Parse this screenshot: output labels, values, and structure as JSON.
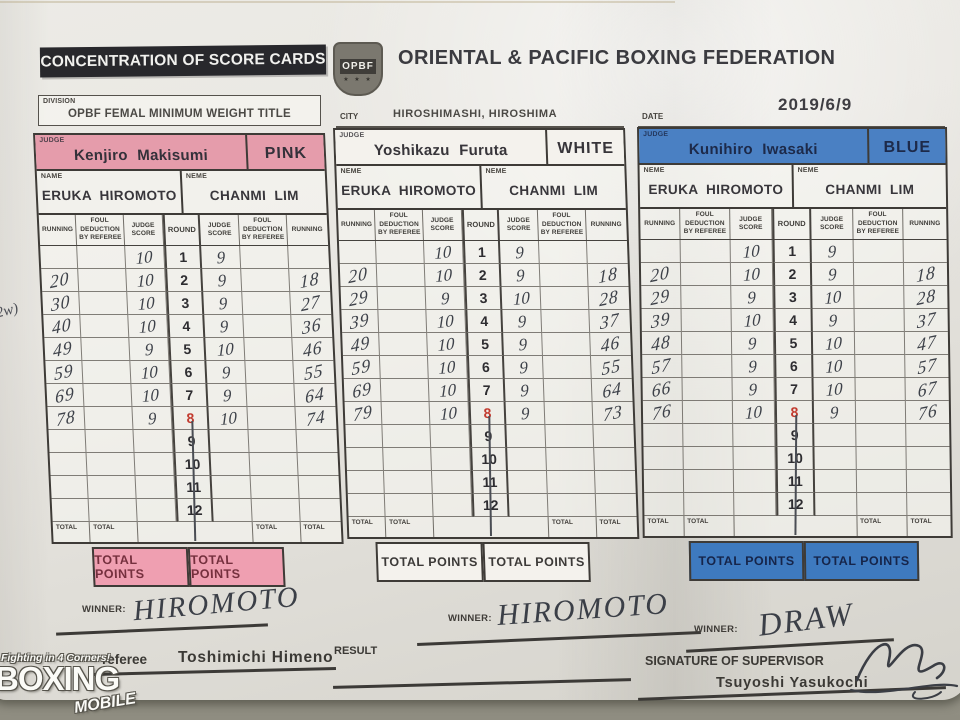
{
  "page": {
    "concentration_title": "CONCENTRATION OF SCORE CARDS",
    "federation_title": "ORIENTAL & PACIFIC BOXING FEDERATION",
    "logo_text": "OPBF",
    "division_label": "DIVISION",
    "division_value": "OPBF FEMAL MINIMUM WEIGHT TITLE",
    "city_label": "CITY",
    "city_value": "HIROSHIMASHI, HIROSHIMA",
    "date_label": "DATE",
    "date_value": "2019/6/9"
  },
  "table_headers": [
    "RUNNING",
    "FOUL DEDUCTION BY REFEREE",
    "JUDGE SCORE",
    "ROUND",
    "JUDGE SCORE",
    "FOUL DEDUCTION BY REFEREE",
    "RUNNING"
  ],
  "total_label": "TOTAL",
  "total_points_label": "TOTAL POINTS",
  "colors": {
    "pink_accent": "#e59cab",
    "pink_total_points": "#ef9fb1",
    "white_accent": "#f4f2ed",
    "blue_accent": "#4a80c3",
    "blue_total_points": "#3e7abf",
    "round8_red": "#c23a2e",
    "ink": "#3d4149"
  },
  "cards": [
    {
      "judge_label": "JUDGE",
      "judge": "Kenjiro  Makisumi",
      "color": "PINK",
      "accent": "#e59cab",
      "tp_bg": "#ef9fb1",
      "head_text": "#34313a",
      "tp_text": "#75303e",
      "left_name_label": "NAME",
      "right_name_label": "NEME",
      "left_boxer": "ERUKA HIROMOTO",
      "right_boxer": "CHANMI  LIM",
      "winner_label": "WINNER:",
      "winner": "HIROMOTO",
      "rounds": [
        {
          "round": 1,
          "left_running": "",
          "left_foul": "",
          "left_score": "10",
          "right_score": "9",
          "right_foul": "",
          "right_running": ""
        },
        {
          "round": 2,
          "left_running": "20",
          "left_foul": "",
          "left_score": "10",
          "right_score": "9",
          "right_foul": "",
          "right_running": "18"
        },
        {
          "round": 3,
          "left_running": "30",
          "left_foul": "",
          "left_score": "10",
          "right_score": "9",
          "right_foul": "",
          "right_running": "27"
        },
        {
          "round": 4,
          "left_running": "40",
          "left_foul": "",
          "left_score": "10",
          "right_score": "9",
          "right_foul": "",
          "right_running": "36"
        },
        {
          "round": 5,
          "left_running": "49",
          "left_foul": "",
          "left_score": "9",
          "right_score": "10",
          "right_foul": "",
          "right_running": "46"
        },
        {
          "round": 6,
          "left_running": "59",
          "left_foul": "",
          "left_score": "10",
          "right_score": "9",
          "right_foul": "",
          "right_running": "55"
        },
        {
          "round": 7,
          "left_running": "69",
          "left_foul": "",
          "left_score": "10",
          "right_score": "9",
          "right_foul": "",
          "right_running": "64"
        },
        {
          "round": 8,
          "left_running": "78",
          "left_foul": "",
          "left_score": "9",
          "right_score": "10",
          "right_foul": "",
          "right_running": "74"
        },
        {
          "round": 9,
          "left_running": "",
          "left_foul": "",
          "left_score": "",
          "right_score": "",
          "right_foul": "",
          "right_running": ""
        },
        {
          "round": 10,
          "left_running": "",
          "left_foul": "",
          "left_score": "",
          "right_score": "",
          "right_foul": "",
          "right_running": ""
        },
        {
          "round": 11,
          "left_running": "",
          "left_foul": "",
          "left_score": "",
          "right_score": "",
          "right_foul": "",
          "right_running": ""
        },
        {
          "round": 12,
          "left_running": "",
          "left_foul": "",
          "left_score": "",
          "right_score": "",
          "right_foul": "",
          "right_running": ""
        }
      ]
    },
    {
      "judge_label": "JUDGE",
      "judge": "Yoshikazu  Furuta",
      "color": "WHITE",
      "accent": "#f4f2ed",
      "tp_bg": "#f4f2ed",
      "head_text": "#37353a",
      "tp_text": "#3c3a38",
      "left_name_label": "NEME",
      "right_name_label": "NEME",
      "left_boxer": "ERUKA HIROMOTO",
      "right_boxer": "CHANMI  LIM",
      "winner_label": "WINNER:",
      "winner": "HIROMOTO",
      "rounds": [
        {
          "round": 1,
          "left_running": "",
          "left_foul": "",
          "left_score": "10",
          "right_score": "9",
          "right_foul": "",
          "right_running": ""
        },
        {
          "round": 2,
          "left_running": "20",
          "left_foul": "",
          "left_score": "10",
          "right_score": "9",
          "right_foul": "",
          "right_running": "18"
        },
        {
          "round": 3,
          "left_running": "29",
          "left_foul": "",
          "left_score": "9",
          "right_score": "10",
          "right_foul": "",
          "right_running": "28"
        },
        {
          "round": 4,
          "left_running": "39",
          "left_foul": "",
          "left_score": "10",
          "right_score": "9",
          "right_foul": "",
          "right_running": "37"
        },
        {
          "round": 5,
          "left_running": "49",
          "left_foul": "",
          "left_score": "10",
          "right_score": "9",
          "right_foul": "",
          "right_running": "46"
        },
        {
          "round": 6,
          "left_running": "59",
          "left_foul": "",
          "left_score": "10",
          "right_score": "9",
          "right_foul": "",
          "right_running": "55"
        },
        {
          "round": 7,
          "left_running": "69",
          "left_foul": "",
          "left_score": "10",
          "right_score": "9",
          "right_foul": "",
          "right_running": "64"
        },
        {
          "round": 8,
          "left_running": "79",
          "left_foul": "",
          "left_score": "10",
          "right_score": "9",
          "right_foul": "",
          "right_running": "73"
        },
        {
          "round": 9,
          "left_running": "",
          "left_foul": "",
          "left_score": "",
          "right_score": "",
          "right_foul": "",
          "right_running": ""
        },
        {
          "round": 10,
          "left_running": "",
          "left_foul": "",
          "left_score": "",
          "right_score": "",
          "right_foul": "",
          "right_running": ""
        },
        {
          "round": 11,
          "left_running": "",
          "left_foul": "",
          "left_score": "",
          "right_score": "",
          "right_foul": "",
          "right_running": ""
        },
        {
          "round": 12,
          "left_running": "",
          "left_foul": "",
          "left_score": "",
          "right_score": "",
          "right_foul": "",
          "right_running": ""
        }
      ]
    },
    {
      "judge_label": "JUDGE",
      "judge": "Kunihiro  Iwasaki",
      "color": "BLUE",
      "accent": "#4a80c3",
      "tp_bg": "#3e7abf",
      "head_text": "#1d2a4a",
      "tp_text": "#16254a",
      "left_name_label": "NEME",
      "right_name_label": "NEME",
      "left_boxer": "ERUKA HIROMOTO",
      "right_boxer": "CHANMI  LIM",
      "winner_label": "WINNER:",
      "winner": "DRAW",
      "rounds": [
        {
          "round": 1,
          "left_running": "",
          "left_foul": "",
          "left_score": "10",
          "right_score": "9",
          "right_foul": "",
          "right_running": ""
        },
        {
          "round": 2,
          "left_running": "20",
          "left_foul": "",
          "left_score": "10",
          "right_score": "9",
          "right_foul": "",
          "right_running": "18"
        },
        {
          "round": 3,
          "left_running": "29",
          "left_foul": "",
          "left_score": "9",
          "right_score": "10",
          "right_foul": "",
          "right_running": "28"
        },
        {
          "round": 4,
          "left_running": "39",
          "left_foul": "",
          "left_score": "10",
          "right_score": "9",
          "right_foul": "",
          "right_running": "37"
        },
        {
          "round": 5,
          "left_running": "48",
          "left_foul": "",
          "left_score": "9",
          "right_score": "10",
          "right_foul": "",
          "right_running": "47"
        },
        {
          "round": 6,
          "left_running": "57",
          "left_foul": "",
          "left_score": "9",
          "right_score": "10",
          "right_foul": "",
          "right_running": "57"
        },
        {
          "round": 7,
          "left_running": "66",
          "left_foul": "",
          "left_score": "9",
          "right_score": "10",
          "right_foul": "",
          "right_running": "67"
        },
        {
          "round": 8,
          "left_running": "76",
          "left_foul": "",
          "left_score": "10",
          "right_score": "9",
          "right_foul": "",
          "right_running": "76"
        },
        {
          "round": 9,
          "left_running": "",
          "left_foul": "",
          "left_score": "",
          "right_score": "",
          "right_foul": "",
          "right_running": ""
        },
        {
          "round": 10,
          "left_running": "",
          "left_foul": "",
          "left_score": "",
          "right_score": "",
          "right_foul": "",
          "right_running": ""
        },
        {
          "round": 11,
          "left_running": "",
          "left_foul": "",
          "left_score": "",
          "right_score": "",
          "right_foul": "",
          "right_running": ""
        },
        {
          "round": 12,
          "left_running": "",
          "left_foul": "",
          "left_score": "",
          "right_score": "",
          "right_foul": "",
          "right_running": ""
        }
      ]
    }
  ],
  "footer": {
    "referee_label": "referee",
    "referee_name": "Toshimichi  Himeno",
    "result_label": "RESULT",
    "supervisor_label": "SIGNATURE OF SUPERVISOR",
    "supervisor_name": "Tsuyoshi  Yasukochi",
    "margin_note": "2w)",
    "watermark": {
      "line1": "Fighting in 4 Corners!",
      "line2": "BOXING",
      "line3": "MOBILE"
    }
  }
}
